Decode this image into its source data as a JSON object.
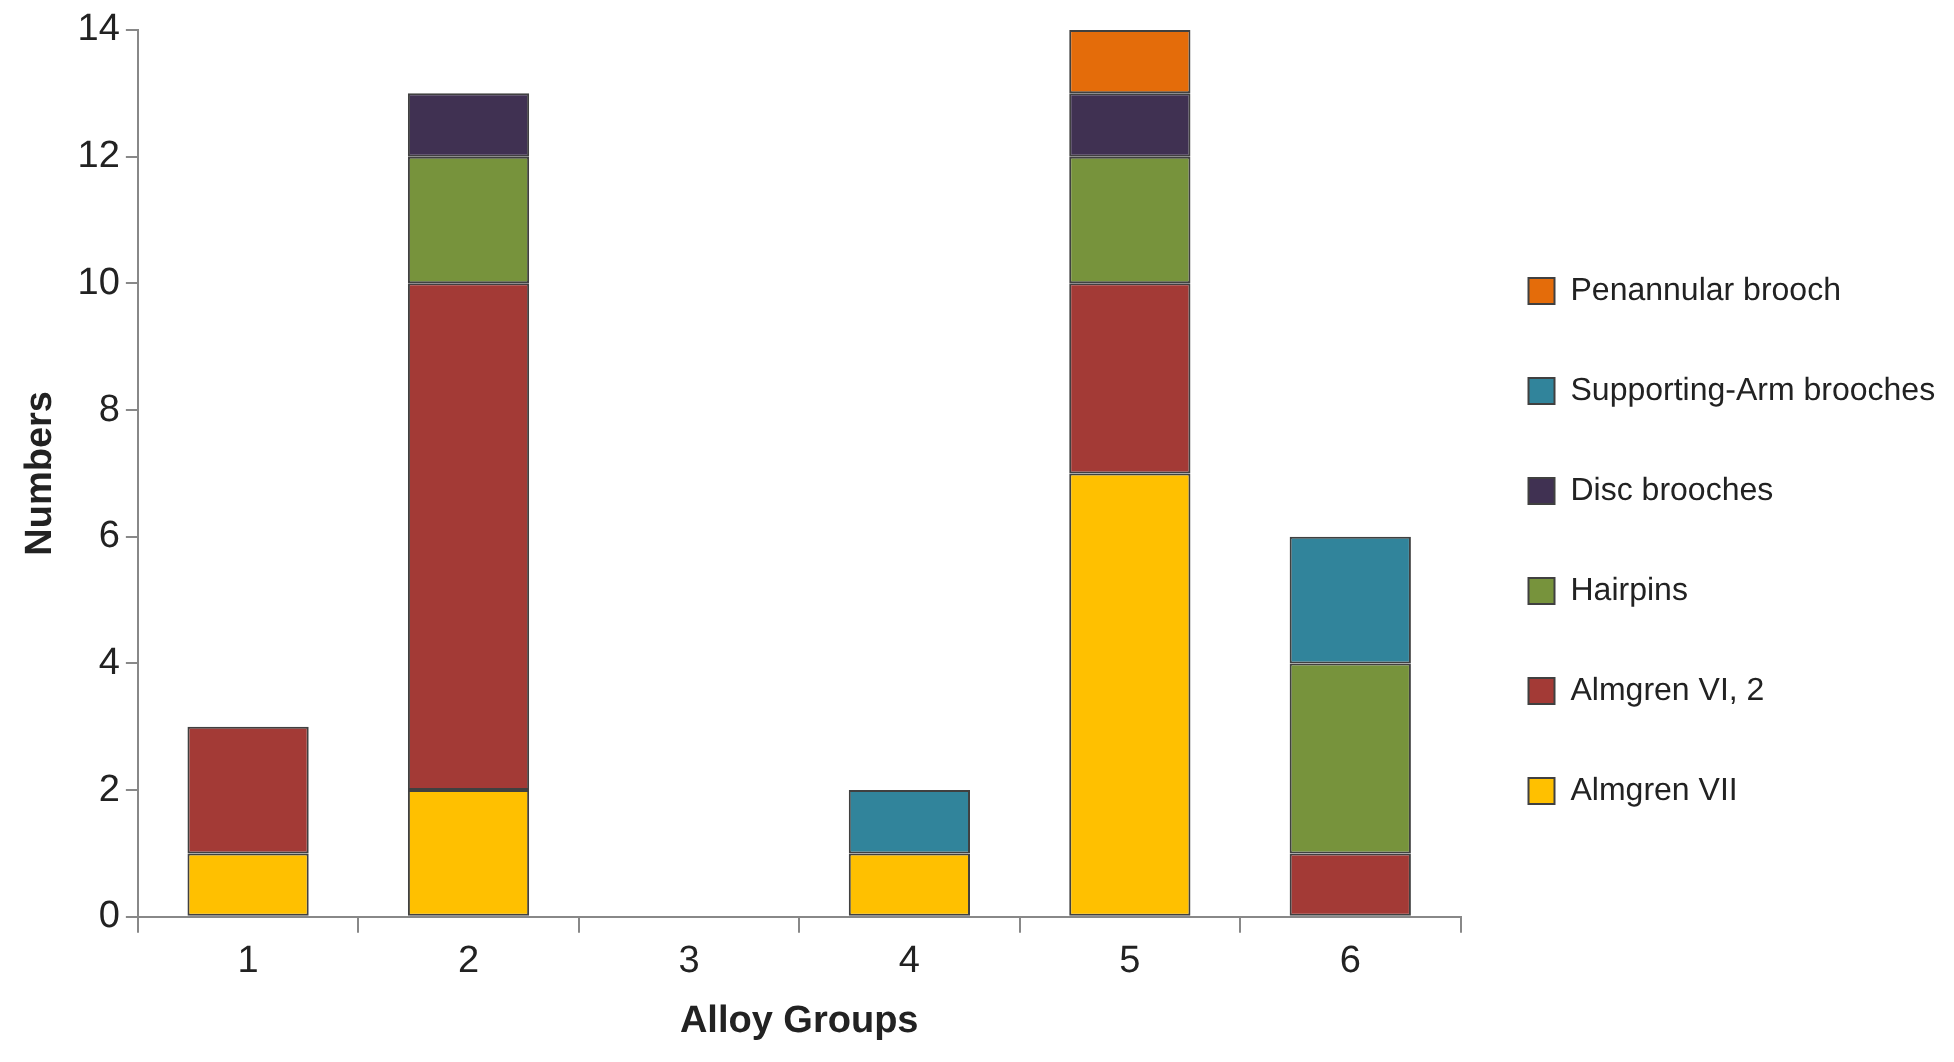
{
  "chart_data": {
    "type": "bar",
    "stacked": true,
    "xlabel": "Alloy Groups",
    "ylabel": "Numbers",
    "categories": [
      "1",
      "2",
      "3",
      "4",
      "5",
      "6"
    ],
    "series": [
      {
        "name": "Almgren VII",
        "color": "#ffc000",
        "values": [
          1,
          2,
          0,
          1,
          7,
          0
        ]
      },
      {
        "name": "Almgren VI, 2",
        "color": "#a33a36",
        "values": [
          2,
          8,
          0,
          0,
          3,
          1
        ]
      },
      {
        "name": "Hairpins",
        "color": "#77933c",
        "values": [
          0,
          2,
          0,
          0,
          2,
          3
        ]
      },
      {
        "name": "Disc brooches",
        "color": "#403152",
        "values": [
          0,
          1,
          0,
          0,
          1,
          0
        ]
      },
      {
        "name": "Supporting-Arm brooches",
        "color": "#31849b",
        "values": [
          0,
          0,
          0,
          1,
          0,
          2
        ]
      },
      {
        "name": "Penannular brooch",
        "color": "#e46c0a",
        "values": [
          0,
          0,
          0,
          0,
          1,
          0
        ]
      }
    ],
    "ylim": [
      0,
      14
    ],
    "yticks": [
      0,
      2,
      4,
      6,
      8,
      10,
      12,
      14
    ],
    "grid": false,
    "legend": "right"
  }
}
